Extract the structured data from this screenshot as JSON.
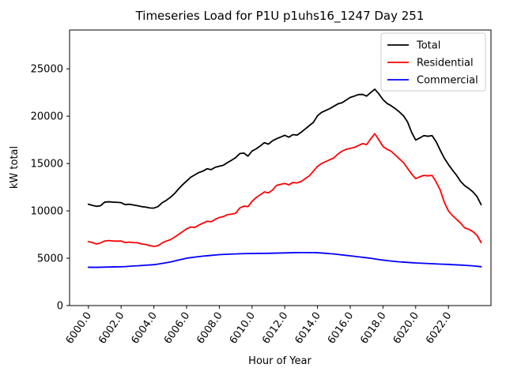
{
  "chart_data": {
    "type": "line",
    "title": "Timeseries Load for P1U p1uhs16_1247  Day 251",
    "xlabel": "Hour of Year",
    "ylabel": "kW total",
    "xlim": [
      5998.85,
      6024.6
    ],
    "ylim": [
      0,
      29100
    ],
    "grid": false,
    "legend_position": "upper right",
    "background_color": "#ffffff",
    "axis_color": "#000000",
    "x_tick_labels": [
      "6000.0",
      "6002.0",
      "6004.0",
      "6006.0",
      "6008.0",
      "6010.0",
      "6012.0",
      "6014.0",
      "6016.0",
      "6018.0",
      "6020.0",
      "6022.0"
    ],
    "y_tick_labels": [
      "0",
      "5000",
      "10000",
      "15000",
      "20000",
      "25000"
    ],
    "x_start": 6000.0,
    "x_step": 0.25,
    "series": [
      {
        "name": "Total",
        "color": "#000000",
        "values": [
          10700,
          10580,
          10480,
          10550,
          10930,
          10960,
          10920,
          10900,
          10870,
          10660,
          10700,
          10620,
          10550,
          10450,
          10400,
          10310,
          10290,
          10450,
          10850,
          11100,
          11420,
          11800,
          12300,
          12750,
          13150,
          13550,
          13800,
          14050,
          14200,
          14450,
          14350,
          14600,
          14720,
          14820,
          15100,
          15350,
          15620,
          16050,
          16100,
          15780,
          16320,
          16550,
          16850,
          17200,
          17050,
          17400,
          17620,
          17800,
          17980,
          17780,
          18050,
          18000,
          18300,
          18650,
          19000,
          19350,
          20050,
          20400,
          20600,
          20800,
          21050,
          21300,
          21420,
          21700,
          21980,
          22120,
          22280,
          22300,
          22120,
          22500,
          22850,
          22350,
          21750,
          21350,
          21100,
          20800,
          20450,
          20050,
          19400,
          18300,
          17480,
          17700,
          17950,
          17880,
          17950,
          17300,
          16400,
          15560,
          14900,
          14300,
          13750,
          13100,
          12650,
          12360,
          12000,
          11500,
          10650
        ]
      },
      {
        "name": "Residential",
        "color": "#ff0000",
        "values": [
          6750,
          6650,
          6500,
          6620,
          6820,
          6870,
          6820,
          6800,
          6820,
          6650,
          6700,
          6650,
          6640,
          6500,
          6450,
          6330,
          6250,
          6320,
          6600,
          6800,
          6950,
          7200,
          7500,
          7800,
          8100,
          8300,
          8250,
          8500,
          8700,
          8900,
          8850,
          9100,
          9300,
          9400,
          9600,
          9650,
          9750,
          10300,
          10500,
          10450,
          11000,
          11400,
          11700,
          12000,
          11900,
          12200,
          12700,
          12800,
          12900,
          12750,
          13000,
          12950,
          13100,
          13400,
          13700,
          14200,
          14700,
          15000,
          15200,
          15400,
          15600,
          16000,
          16300,
          16500,
          16600,
          16700,
          16900,
          17100,
          17000,
          17600,
          18150,
          17500,
          16800,
          16500,
          16300,
          15900,
          15500,
          15100,
          14500,
          13900,
          13400,
          13600,
          13750,
          13700,
          13750,
          13050,
          12200,
          10900,
          10000,
          9500,
          9100,
          8700,
          8200,
          8050,
          7800,
          7400,
          6650
        ]
      },
      {
        "name": "Commercial",
        "color": "#0000ff",
        "values": [
          4050,
          4040,
          4040,
          4050,
          4060,
          4070,
          4080,
          4090,
          4100,
          4120,
          4150,
          4180,
          4200,
          4230,
          4260,
          4290,
          4320,
          4380,
          4450,
          4520,
          4600,
          4700,
          4800,
          4900,
          5000,
          5060,
          5120,
          5170,
          5220,
          5260,
          5300,
          5340,
          5380,
          5400,
          5420,
          5440,
          5450,
          5470,
          5480,
          5490,
          5500,
          5505,
          5510,
          5515,
          5520,
          5530,
          5540,
          5550,
          5560,
          5570,
          5580,
          5590,
          5600,
          5595,
          5590,
          5585,
          5580,
          5550,
          5520,
          5480,
          5450,
          5400,
          5350,
          5300,
          5250,
          5200,
          5150,
          5100,
          5050,
          4990,
          4930,
          4860,
          4800,
          4750,
          4700,
          4660,
          4620,
          4590,
          4560,
          4530,
          4500,
          4480,
          4460,
          4440,
          4420,
          4400,
          4380,
          4360,
          4350,
          4320,
          4300,
          4280,
          4250,
          4220,
          4190,
          4150,
          4100
        ]
      }
    ]
  }
}
